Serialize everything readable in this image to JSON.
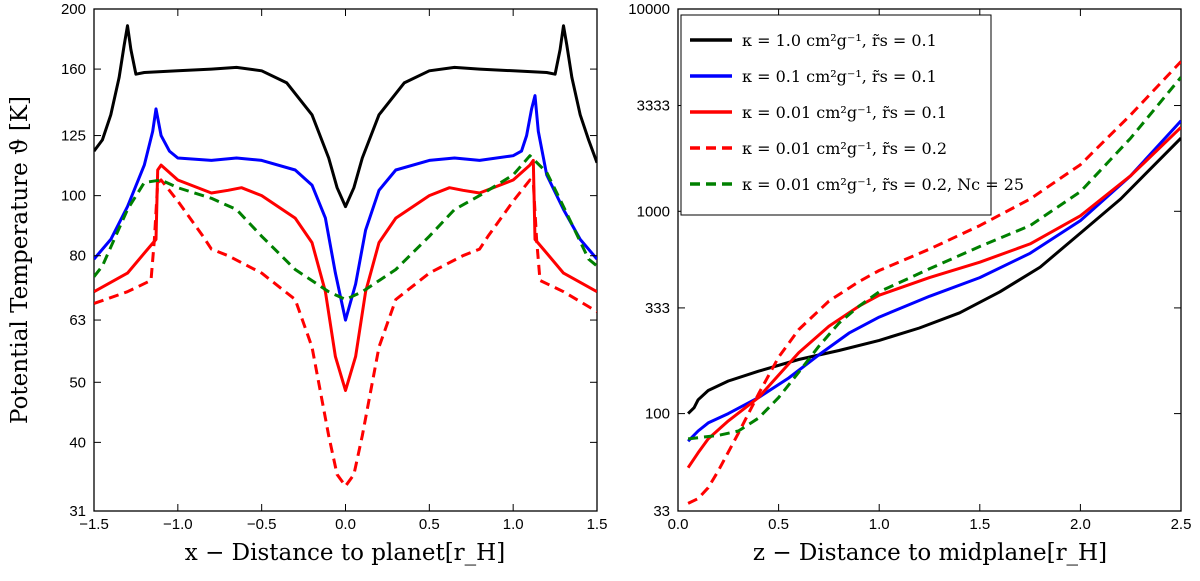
{
  "chart_data": [
    {
      "type": "line",
      "id": "left",
      "xlabel": "x − Distance to planet[r_H]",
      "ylabel": "Potential Temperature ϑ [K]",
      "xlim": [
        -1.5,
        1.5
      ],
      "ylim": [
        31,
        200
      ],
      "yscale": "log",
      "xticks": [
        -1.5,
        -1.0,
        -0.5,
        0.0,
        0.5,
        1.0,
        1.5
      ],
      "xtick_labels": [
        "−1.5",
        "−1.0",
        "−0.5",
        "0.0",
        "0.5",
        "1.0",
        "1.5"
      ],
      "yticks": [
        31,
        40,
        50,
        63,
        80,
        100,
        125,
        160,
        200
      ],
      "ytick_labels": [
        "31",
        "40",
        "50",
        "63",
        "80",
        "100",
        "125",
        "160",
        "200"
      ],
      "series": [
        {
          "name": "κ = 1.0 cm²g⁻¹, r̃s = 0.1",
          "color": "#000000",
          "dash": "solid",
          "x": [
            -1.5,
            -1.45,
            -1.4,
            -1.35,
            -1.32,
            -1.3,
            -1.28,
            -1.25,
            -1.2,
            -1.0,
            -0.8,
            -0.65,
            -0.5,
            -0.35,
            -0.2,
            -0.1,
            -0.05,
            0.0,
            0.05,
            0.1,
            0.2,
            0.35,
            0.5,
            0.65,
            0.8,
            1.0,
            1.2,
            1.25,
            1.28,
            1.3,
            1.32,
            1.35,
            1.4,
            1.45,
            1.5
          ],
          "y": [
            118,
            123,
            135,
            155,
            175,
            188,
            172,
            157,
            158,
            159,
            160,
            161,
            159,
            152,
            135,
            115,
            103,
            96,
            103,
            115,
            135,
            152,
            159,
            161,
            160,
            159,
            158,
            157,
            172,
            188,
            175,
            155,
            135,
            123,
            113
          ]
        },
        {
          "name": "κ = 0.1 cm²g⁻¹, r̃s = 0.1",
          "color": "#0000ff",
          "dash": "solid",
          "x": [
            -1.5,
            -1.4,
            -1.3,
            -1.2,
            -1.15,
            -1.13,
            -1.1,
            -1.05,
            -1.0,
            -0.8,
            -0.65,
            -0.5,
            -0.3,
            -0.2,
            -0.12,
            -0.06,
            0.0,
            0.06,
            0.12,
            0.2,
            0.3,
            0.5,
            0.65,
            0.8,
            1.0,
            1.05,
            1.08,
            1.11,
            1.13,
            1.15,
            1.2,
            1.3,
            1.4,
            1.5
          ],
          "y": [
            79,
            85,
            96,
            112,
            127,
            138,
            125,
            118,
            115,
            114,
            115,
            114,
            110,
            104,
            92,
            75,
            63,
            72,
            88,
            102,
            110,
            114,
            115,
            114,
            116,
            118,
            125,
            138,
            145,
            127,
            108,
            95,
            85,
            79
          ]
        },
        {
          "name": "κ = 0.01 cm²g⁻¹, r̃s = 0.1",
          "color": "#ff0000",
          "dash": "solid",
          "x": [
            -1.5,
            -1.3,
            -1.18,
            -1.13,
            -1.12,
            -1.1,
            -1.0,
            -0.8,
            -0.7,
            -0.62,
            -0.5,
            -0.3,
            -0.2,
            -0.12,
            -0.06,
            0.0,
            0.06,
            0.12,
            0.2,
            0.3,
            0.5,
            0.62,
            0.7,
            0.8,
            1.0,
            1.1,
            1.12,
            1.13,
            1.18,
            1.3,
            1.5
          ],
          "y": [
            70,
            75,
            82,
            85,
            110,
            112,
            106,
            101,
            102,
            103,
            100,
            92,
            84,
            70,
            55,
            48.5,
            55,
            70,
            84,
            92,
            100,
            103,
            102,
            101,
            106,
            112,
            114,
            85,
            82,
            75,
            70
          ]
        },
        {
          "name": "κ = 0.01 cm²g⁻¹, r̃s = 0.2",
          "color": "#ff0000",
          "dash": "dashed",
          "x": [
            -1.5,
            -1.3,
            -1.16,
            -1.14,
            -1.12,
            -1.1,
            -1.0,
            -0.85,
            -0.8,
            -0.7,
            -0.5,
            -0.3,
            -0.2,
            -0.1,
            -0.05,
            0.0,
            0.05,
            0.1,
            0.2,
            0.3,
            0.5,
            0.7,
            0.8,
            0.85,
            1.0,
            1.1,
            1.12,
            1.14,
            1.16,
            1.3,
            1.5
          ],
          "y": [
            67,
            70,
            73,
            85,
            105,
            106,
            98,
            86,
            82,
            80,
            75,
            68,
            57,
            41,
            35.5,
            34,
            35.5,
            41,
            57,
            68,
            75,
            80,
            82,
            86,
            98,
            106,
            105,
            85,
            73,
            70,
            65
          ]
        },
        {
          "name": "κ = 0.01 cm²g⁻¹, r̃s = 0.2, Nc = 25",
          "color": "#008000",
          "dash": "dashed",
          "x": [
            -1.5,
            -1.45,
            -1.3,
            -1.2,
            -1.1,
            -1.0,
            -0.8,
            -0.65,
            -0.5,
            -0.3,
            -0.1,
            0.0,
            0.1,
            0.3,
            0.5,
            0.65,
            0.8,
            1.0,
            1.1,
            1.2,
            1.3,
            1.45,
            1.5
          ],
          "y": [
            74,
            77,
            95,
            105,
            106,
            103,
            99,
            95,
            86,
            76,
            70,
            68,
            70,
            76,
            86,
            95,
            100,
            108,
            116,
            109,
            96,
            79,
            77
          ]
        }
      ]
    },
    {
      "type": "line",
      "id": "right",
      "xlabel": "z − Distance to midplane[r_H]",
      "ylabel": "",
      "xlim": [
        0.0,
        2.5
      ],
      "ylim": [
        33,
        10000
      ],
      "yscale": "log",
      "xticks": [
        0.0,
        0.5,
        1.0,
        1.5,
        2.0,
        2.5
      ],
      "xtick_labels": [
        "0.0",
        "0.5",
        "1.0",
        "1.5",
        "2.0",
        "2.5"
      ],
      "yticks": [
        33,
        100,
        333,
        1000,
        3333,
        10000
      ],
      "ytick_labels": [
        "33",
        "100",
        "333",
        "1000",
        "3333",
        "10000"
      ],
      "legend": {
        "loc": "upper-left"
      },
      "series": [
        {
          "name": "κ = 1.0 cm²g⁻¹, r̃s = 0.1",
          "color": "#000000",
          "dash": "solid",
          "x": [
            0.05,
            0.08,
            0.1,
            0.15,
            0.25,
            0.4,
            0.6,
            0.8,
            1.0,
            1.2,
            1.4,
            1.6,
            1.8,
            2.0,
            2.2,
            2.5
          ],
          "y": [
            100,
            107,
            117,
            130,
            145,
            162,
            185,
            205,
            230,
            265,
            315,
            400,
            530,
            780,
            1150,
            2300
          ]
        },
        {
          "name": "κ = 0.1 cm²g⁻¹, r̃s = 0.1",
          "color": "#0000ff",
          "dash": "solid",
          "x": [
            0.05,
            0.1,
            0.15,
            0.25,
            0.4,
            0.55,
            0.7,
            0.85,
            1.0,
            1.25,
            1.5,
            1.75,
            2.0,
            2.25,
            2.5
          ],
          "y": [
            73,
            82,
            90,
            100,
            120,
            150,
            195,
            250,
            300,
            380,
            470,
            620,
            900,
            1500,
            2800
          ]
        },
        {
          "name": "κ = 0.01 cm²g⁻¹, r̃s = 0.1",
          "color": "#ff0000",
          "dash": "solid",
          "x": [
            0.05,
            0.1,
            0.15,
            0.25,
            0.4,
            0.5,
            0.6,
            0.75,
            0.9,
            1.0,
            1.25,
            1.5,
            1.75,
            2.0,
            2.25,
            2.5
          ],
          "y": [
            54,
            64,
            75,
            92,
            120,
            155,
            200,
            270,
            340,
            385,
            470,
            560,
            690,
            950,
            1500,
            2600
          ]
        },
        {
          "name": "κ = 0.01 cm²g⁻¹, r̃s = 0.2",
          "color": "#ff0000",
          "dash": "dashed",
          "x": [
            0.05,
            0.1,
            0.15,
            0.2,
            0.3,
            0.4,
            0.5,
            0.6,
            0.75,
            0.9,
            1.0,
            1.25,
            1.5,
            1.75,
            2.0,
            2.25,
            2.5
          ],
          "y": [
            36,
            38,
            43,
            52,
            80,
            125,
            190,
            260,
            360,
            450,
            510,
            650,
            850,
            1150,
            1700,
            3000,
            5500
          ]
        },
        {
          "name": "κ = 0.01 cm²g⁻¹, r̃s = 0.2, Nc = 25",
          "color": "#008000",
          "dash": "dashed",
          "x": [
            0.05,
            0.1,
            0.2,
            0.3,
            0.4,
            0.5,
            0.6,
            0.7,
            0.8,
            0.9,
            1.0,
            1.25,
            1.5,
            1.75,
            2.0,
            2.25,
            2.5
          ],
          "y": [
            75,
            76,
            78,
            82,
            95,
            120,
            160,
            215,
            280,
            340,
            400,
            520,
            670,
            850,
            1250,
            2300,
            4600
          ]
        }
      ]
    }
  ]
}
